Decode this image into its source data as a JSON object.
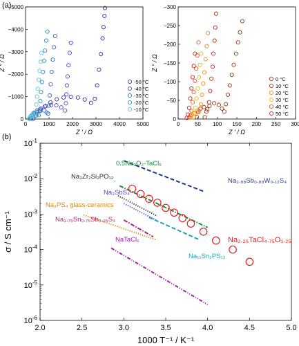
{
  "panels": {
    "a": "(a)",
    "b": "(b)"
  },
  "chart_data": [
    {
      "type": "scatter",
      "panel": "a-left",
      "xlabel": "Z ′ / Ω",
      "ylabel": "Z ″ / Ω",
      "xlim": [
        0,
        5000
      ],
      "ylim": [
        0,
        -5000
      ],
      "xticks": [
        0,
        1000,
        2000,
        3000,
        4000,
        5000
      ],
      "yticks": [
        0,
        -1000,
        -2000,
        -3000,
        -4000,
        -5000
      ],
      "legend_position": "right",
      "series": [
        {
          "name": "-50 °C",
          "color": "#3b2f9a",
          "points": [
            [
              330,
              -15
            ],
            [
              450,
              -160
            ],
            [
              620,
              -360
            ],
            [
              820,
              -560
            ],
            [
              1060,
              -740
            ],
            [
              1330,
              -880
            ],
            [
              1620,
              -960
            ],
            [
              1930,
              -990
            ],
            [
              2230,
              -960
            ],
            [
              2520,
              -870
            ],
            [
              2790,
              -720
            ],
            [
              2950,
              -900
            ],
            [
              3050,
              -1500
            ],
            [
              3130,
              -2200
            ],
            [
              3210,
              -2900
            ],
            [
              3280,
              -3600
            ],
            [
              3320,
              -4100
            ],
            [
              3360,
              -4600
            ],
            [
              3380,
              -4950
            ]
          ]
        },
        {
          "name": "-40 °C",
          "color": "#4b48c8",
          "points": [
            [
              240,
              -20
            ],
            [
              330,
              -150
            ],
            [
              470,
              -320
            ],
            [
              650,
              -470
            ],
            [
              860,
              -580
            ],
            [
              1090,
              -630
            ],
            [
              1310,
              -610
            ],
            [
              1520,
              -520
            ],
            [
              1680,
              -380
            ],
            [
              1720,
              -700
            ],
            [
              1740,
              -1100
            ],
            [
              1760,
              -1500
            ],
            [
              1790,
              -1900
            ],
            [
              1830,
              -2400
            ],
            [
              1880,
              -2950
            ],
            [
              1930,
              -3400
            ]
          ]
        },
        {
          "name": "-30 °C",
          "color": "#2f6ac2",
          "points": [
            [
              200,
              -20
            ],
            [
              260,
              -140
            ],
            [
              360,
              -280
            ],
            [
              490,
              -380
            ],
            [
              640,
              -420
            ],
            [
              790,
              -380
            ],
            [
              900,
              -290
            ],
            [
              960,
              -240
            ],
            [
              1000,
              -600
            ],
            [
              1030,
              -1050
            ],
            [
              1070,
              -1550
            ],
            [
              1110,
              -2100
            ],
            [
              1160,
              -2650
            ],
            [
              1210,
              -3200
            ],
            [
              1260,
              -3700
            ]
          ]
        },
        {
          "name": "-20 °C",
          "color": "#2a8fb5",
          "points": [
            [
              170,
              -15
            ],
            [
              210,
              -110
            ],
            [
              290,
              -200
            ],
            [
              390,
              -250
            ],
            [
              490,
              -220
            ],
            [
              560,
              -170
            ],
            [
              600,
              -420
            ],
            [
              630,
              -800
            ],
            [
              660,
              -1200
            ],
            [
              700,
              -1650
            ],
            [
              740,
              -2100
            ],
            [
              790,
              -2600
            ],
            [
              830,
              -3050
            ],
            [
              880,
              -3500
            ],
            [
              930,
              -3900
            ]
          ]
        },
        {
          "name": "-10 °C",
          "color": "#5cc6d6",
          "points": [
            [
              150,
              -15
            ],
            [
              190,
              -90
            ],
            [
              250,
              -140
            ],
            [
              320,
              -150
            ],
            [
              390,
              -120
            ],
            [
              430,
              -300
            ],
            [
              460,
              -650
            ],
            [
              490,
              -1000
            ],
            [
              520,
              -1350
            ],
            [
              560,
              -1750
            ],
            [
              600,
              -2150
            ],
            [
              640,
              -2550
            ],
            [
              680,
              -2950
            ]
          ]
        }
      ]
    },
    {
      "type": "scatter",
      "panel": "a-right",
      "xlabel": "Z ′ / Ω",
      "ylabel": "Z ″ / Ω",
      "xlim": [
        0,
        300
      ],
      "ylim": [
        0,
        -300
      ],
      "xticks": [
        0,
        50,
        100,
        150,
        200,
        250,
        300
      ],
      "yticks": [
        0,
        -50,
        -100,
        -150,
        -200,
        -250,
        -300
      ],
      "legend_position": "bottom-right",
      "series": [
        {
          "name": "0 °C",
          "color": "#8a3a12",
          "points": [
            [
              68,
              -5
            ],
            [
              72,
              -20
            ],
            [
              80,
              -35
            ],
            [
              92,
              -42
            ],
            [
              104,
              -38
            ],
            [
              112,
              -28
            ],
            [
              118,
              -20
            ],
            [
              122,
              -40
            ],
            [
              127,
              -65
            ],
            [
              132,
              -90
            ],
            [
              137,
              -118
            ],
            [
              142,
              -145
            ],
            [
              148,
              -175
            ],
            [
              153,
              -205
            ],
            [
              158,
              -232
            ],
            [
              164,
              -262
            ]
          ]
        },
        {
          "name": "10 °C",
          "color": "#b52a12",
          "points": [
            [
              48,
              -5
            ],
            [
              51,
              -18
            ],
            [
              57,
              -28
            ],
            [
              66,
              -32
            ],
            [
              74,
              -26
            ],
            [
              79,
              -45
            ],
            [
              82,
              -75
            ],
            [
              85,
              -108
            ],
            [
              88,
              -140
            ],
            [
              90,
              -175
            ],
            [
              93,
              -210
            ],
            [
              95,
              -245
            ],
            [
              97,
              -282
            ]
          ]
        },
        {
          "name": "20 °C",
          "color": "#f08a1e",
          "points": [
            [
              40,
              -5
            ],
            [
              43,
              -15
            ],
            [
              48,
              -22
            ],
            [
              54,
              -22
            ],
            [
              58,
              -40
            ],
            [
              61,
              -65
            ],
            [
              64,
              -95
            ],
            [
              67,
              -125
            ],
            [
              70,
              -160
            ],
            [
              73,
              -195
            ],
            [
              76,
              -230
            ]
          ]
        },
        {
          "name": "30 °C",
          "color": "#e8b818",
          "points": [
            [
              33,
              -4
            ],
            [
              36,
              -12
            ],
            [
              40,
              -16
            ],
            [
              44,
              -30
            ],
            [
              47,
              -55
            ],
            [
              50,
              -82
            ],
            [
              53,
              -112
            ],
            [
              56,
              -145
            ],
            [
              59,
              -175
            ]
          ]
        },
        {
          "name": "40 °C",
          "color": "#e85a22",
          "points": [
            [
              28,
              -4
            ],
            [
              31,
              -10
            ],
            [
              34,
              -22
            ],
            [
              37,
              -45
            ],
            [
              40,
              -72
            ],
            [
              43,
              -102
            ],
            [
              46,
              -135
            ],
            [
              49,
              -170
            ],
            [
              52,
              -205
            ]
          ]
        },
        {
          "name": "50 °C",
          "color": "#d01f1f",
          "points": [
            [
              22,
              -3
            ],
            [
              25,
              -12
            ],
            [
              28,
              -30
            ],
            [
              31,
              -55
            ],
            [
              34,
              -82
            ],
            [
              37,
              -112
            ],
            [
              40,
              -142
            ],
            [
              43,
              -175
            ]
          ]
        }
      ]
    },
    {
      "type": "line",
      "panel": "b",
      "xlabel": "1000 T⁻¹ / K⁻¹",
      "ylabel": "σ / S cm⁻¹",
      "xlim": [
        2.0,
        5.0
      ],
      "ylim": [
        1e-06,
        0.1
      ],
      "log_y": true,
      "xticks": [
        "2.0",
        "2.5",
        "3.0",
        "3.5",
        "4.0",
        "4.5",
        "5.0"
      ],
      "series": [
        {
          "name": "Na₂.₈₈Sb₀.₈₈W₀.₁₂S₄",
          "color": "#1f3a93",
          "style": "dashed",
          "x": [
            3.0,
            3.95
          ],
          "y": [
            0.032,
            0.0044
          ]
        },
        {
          "name": "0.5Na₂O₂-TaCl₅",
          "color": "#1e8a3a",
          "style": "dashdot",
          "x": [
            2.95,
            4.0
          ],
          "y": [
            0.0063,
            0.00042
          ]
        },
        {
          "name": "Na₃Zr₂Si₂PO₁₂",
          "color": "#2a2a2a",
          "style": "dotted",
          "x": [
            2.93,
            3.4
          ],
          "y": [
            0.0033,
            0.00088
          ]
        },
        {
          "name": "Na₃SbS₄",
          "color": "#4a4ad0",
          "style": "dotted",
          "x": [
            3.0,
            3.4
          ],
          "y": [
            0.002,
            0.00065
          ]
        },
        {
          "name": "Na₃PS₄ glass-ceramics",
          "color": "#d68a10",
          "style": "dotted",
          "x": [
            2.52,
            3.38
          ],
          "y": [
            0.00095,
            0.00019
          ]
        },
        {
          "name": "Na₃.₇₅Sn₀.₇₅Sb₀.₂₅S₄",
          "color": "#c0186a",
          "style": "dashdot",
          "x": [
            3.0,
            3.35
          ],
          "y": [
            0.00068,
            0.00023
          ]
        },
        {
          "name": "Na₁₁Sn₂PS₁₂",
          "color": "#20a0b8",
          "style": "dashed",
          "x": [
            3.3,
            3.9
          ],
          "y": [
            0.00081,
            0.00019
          ]
        },
        {
          "name": "NaTaCl₆",
          "color": "#a020a0",
          "style": "dashdotdot",
          "x": [
            2.85,
            4.0
          ],
          "y": [
            0.00011,
            2.8e-06
          ]
        },
        {
          "name": "Na₂.₂₅TaCl₄.₇₅O₁.₂₅",
          "color": "#e02020",
          "style": "circles",
          "x": [
            3.1,
            3.2,
            3.3,
            3.4,
            3.5,
            3.6,
            3.7,
            3.8,
            3.95,
            4.1,
            4.3,
            4.5
          ],
          "y": [
            0.0052,
            0.0037,
            0.0027,
            0.0021,
            0.0015,
            0.0011,
            0.00077,
            0.00054,
            0.00032,
            0.00018,
            0.0001,
            4.5e-05
          ]
        }
      ],
      "labels": [
        {
          "text": "Na₂.₈₈Sb₀.₈₈W₀.₁₂S₄",
          "color": "#1f3a93"
        },
        {
          "text": "0.5Na₂O₂-TaCl₅",
          "color": "#1e8a3a"
        },
        {
          "text": "Na₃Zr₂Si₂PO₁₂",
          "color": "#2a2a2a"
        },
        {
          "text": "Na₃SbS₄",
          "color": "#4a4ad0"
        },
        {
          "text": "Na₃PS₄ glass-ceramics",
          "color": "#d68a10"
        },
        {
          "text": "Na₃.₇₅Sn₀.₇₅Sb₀.₂₅S₄",
          "color": "#c0186a"
        },
        {
          "text": "Na₂.₂₅TaCl₄.₇₅O₁.₂₅",
          "color": "#e02020"
        },
        {
          "text": "Na₁₁Sn₂PS₁₂",
          "color": "#20a0b8"
        },
        {
          "text": "NaTaCl₆",
          "color": "#a020a0"
        }
      ]
    }
  ]
}
